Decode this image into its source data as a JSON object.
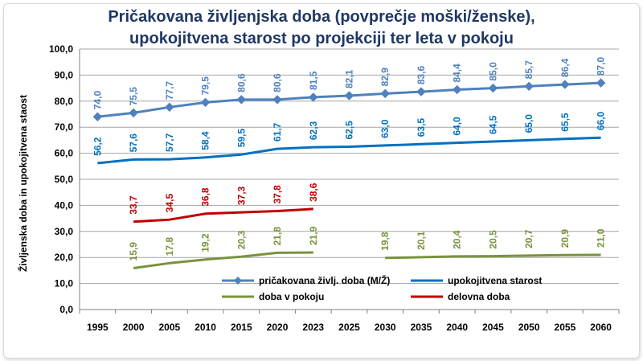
{
  "chart_data": {
    "type": "line",
    "title_lines": [
      "Pričakovana življenjska doba (povprečje moški/ženske),",
      "upokojitvena starost po projekciji ter leta v pokoju"
    ],
    "ylabel": "Življenska doba in upokojitvena staost",
    "xlabel": "",
    "categories": [
      "1995",
      "2000",
      "2005",
      "2010",
      "2015",
      "2020",
      "2023",
      "2025",
      "2030",
      "2035",
      "2040",
      "2045",
      "2050",
      "2055",
      "2060"
    ],
    "ylim": [
      0,
      100
    ],
    "yticks": [
      "0,0",
      "10,0",
      "20,0",
      "30,0",
      "40,0",
      "50,0",
      "60,0",
      "70,0",
      "80,0",
      "90,0",
      "100,0"
    ],
    "grid": true,
    "legend_position": "inside-bottom",
    "series": [
      {
        "name": "pričakovana življ. doba (M/Ž)",
        "color": "#4f81bd",
        "marker": "diamond",
        "values": [
          74.0,
          75.5,
          77.7,
          79.5,
          80.6,
          80.6,
          81.5,
          82.1,
          82.9,
          83.6,
          84.4,
          85.0,
          85.7,
          86.4,
          87.0
        ],
        "labels": [
          "74,0",
          "75,5",
          "77,7",
          "79,5",
          "80,6",
          "80,6",
          "81,5",
          "82,1",
          "82,9",
          "83,6",
          "84,4",
          "85,0",
          "85,7",
          "86,4",
          "87,0"
        ]
      },
      {
        "name": "upokojitvena starost",
        "color": "#0070c0",
        "marker": "none",
        "values": [
          56.2,
          57.6,
          57.7,
          58.4,
          59.5,
          61.7,
          62.3,
          62.5,
          63.0,
          63.5,
          64.0,
          64.5,
          65.0,
          65.5,
          66.0
        ],
        "labels": [
          "56,2",
          "57,6",
          "57,7",
          "58,4",
          "59,5",
          "61,7",
          "62,3",
          "62,5",
          "63,0",
          "63,5",
          "64,0",
          "64,5",
          "65,0",
          "65,5",
          "66,0"
        ]
      },
      {
        "name": "doba v pokoju",
        "color": "#77933c",
        "marker": "none",
        "values": [
          null,
          15.9,
          17.8,
          19.2,
          20.3,
          21.8,
          21.9,
          null,
          19.8,
          20.1,
          20.4,
          20.5,
          20.7,
          20.9,
          21.0
        ],
        "labels": [
          null,
          "15,9",
          "17,8",
          "19,2",
          "20,3",
          "21,8",
          "21,9",
          null,
          "19,8",
          "20,1",
          "20,4",
          "20,5",
          "20,7",
          "20,9",
          "21,0"
        ]
      },
      {
        "name": "delovna doba",
        "color": "#c00000",
        "marker": "none",
        "values": [
          null,
          33.7,
          34.5,
          36.8,
          37.3,
          37.8,
          38.6,
          null,
          null,
          null,
          null,
          null,
          null,
          null,
          null
        ],
        "labels": [
          null,
          "33,7",
          "34,5",
          "36,8",
          "37,3",
          "37,8",
          "38,6",
          null,
          null,
          null,
          null,
          null,
          null,
          null,
          null
        ]
      }
    ]
  }
}
